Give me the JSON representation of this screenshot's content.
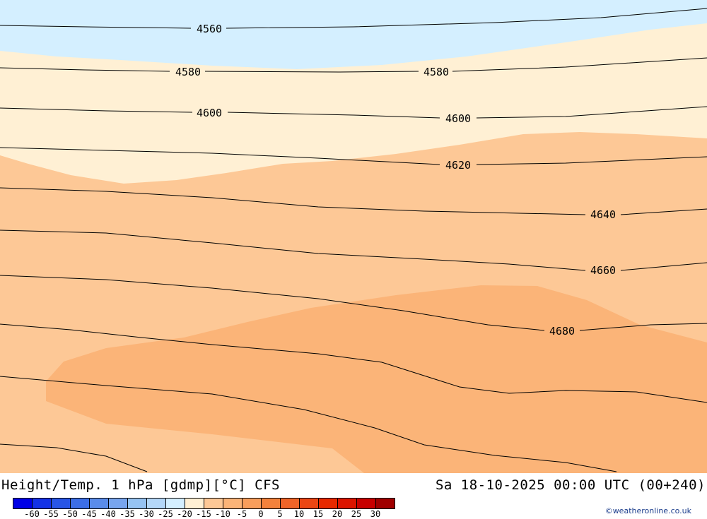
{
  "map": {
    "product": "Height/Temp. 1 hPa [gdmp][°C] CFS",
    "valid_time": "Sa 18-10-2025 00:00 UTC (00+240)",
    "contour_labels": [
      "4560",
      "4580",
      "4580",
      "4600",
      "4600",
      "4620",
      "4640",
      "4660",
      "4680"
    ],
    "fill_colors": {
      "cold_band": "#d4efff",
      "cream_band": "#fff0d4",
      "light_orange": "#fdc896",
      "orange": "#fbb478"
    }
  },
  "legend": {
    "colors": [
      "#0000e6",
      "#1432e6",
      "#2855e6",
      "#3c6ee6",
      "#5a8cea",
      "#78a5ee",
      "#96c3f2",
      "#b4d7f8",
      "#d4efff",
      "#fff0d4",
      "#fdc896",
      "#fbb478",
      "#f89e5c",
      "#f4823c",
      "#f06428",
      "#ec4614",
      "#e82800",
      "#dc1400",
      "#c80000",
      "#a00000"
    ],
    "ticks": [
      "-60",
      "-55",
      "-50",
      "-45",
      "-40",
      "-35",
      "-30",
      "-25",
      "-20",
      "-15",
      "-10",
      "-5",
      "0",
      "5",
      "10",
      "15",
      "20",
      "25",
      "30"
    ]
  },
  "credit": "©weatheronline.co.uk"
}
